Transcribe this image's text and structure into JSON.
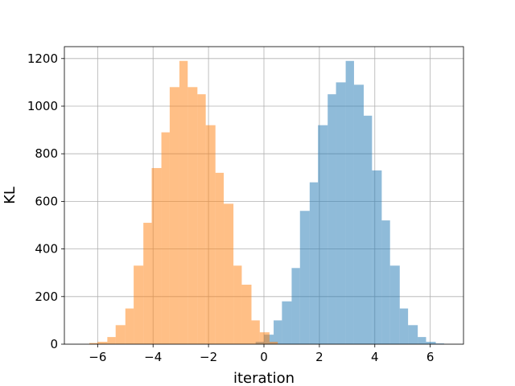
{
  "chart_data": {
    "type": "bar",
    "title": "",
    "xlabel": "iteration",
    "ylabel": "KL",
    "xlim": [
      -7.2,
      7.2
    ],
    "ylim": [
      0,
      1250
    ],
    "x_ticks": [
      -6,
      -4,
      -2,
      0,
      2,
      4,
      6
    ],
    "x_tick_labels": [
      "−6",
      "−4",
      "−2",
      "0",
      "2",
      "4",
      "6"
    ],
    "y_ticks": [
      0,
      200,
      400,
      600,
      800,
      1000,
      1200
    ],
    "y_tick_labels": [
      "0",
      "200",
      "400",
      "600",
      "800",
      "1000",
      "1200"
    ],
    "grid": true,
    "series": [
      {
        "color": "#1f77b4",
        "opacity": 0.5,
        "bin_edges": [
          -0.3,
          0.0,
          0.35,
          0.65,
          1.0,
          1.3,
          1.65,
          1.95,
          2.3,
          2.6,
          2.95,
          3.25,
          3.6,
          3.9,
          4.25,
          4.55,
          4.9,
          5.2,
          5.55,
          5.85,
          6.2,
          6.5
        ],
        "values": [
          10,
          40,
          100,
          180,
          320,
          560,
          680,
          920,
          1050,
          1100,
          1190,
          1090,
          960,
          730,
          520,
          330,
          150,
          80,
          30,
          10,
          3
        ]
      },
      {
        "color": "#ff7f0e",
        "opacity": 0.5,
        "bin_edges": [
          -6.3,
          -6.0,
          -5.65,
          -5.35,
          -5.0,
          -4.7,
          -4.35,
          -4.05,
          -3.7,
          -3.4,
          -3.05,
          -2.75,
          -2.4,
          -2.1,
          -1.75,
          -1.45,
          -1.1,
          -0.8,
          -0.45,
          -0.15,
          0.2,
          0.5
        ],
        "values": [
          5,
          10,
          30,
          80,
          150,
          330,
          510,
          740,
          890,
          1080,
          1190,
          1080,
          1050,
          920,
          720,
          590,
          330,
          250,
          100,
          50,
          10
        ]
      }
    ]
  }
}
